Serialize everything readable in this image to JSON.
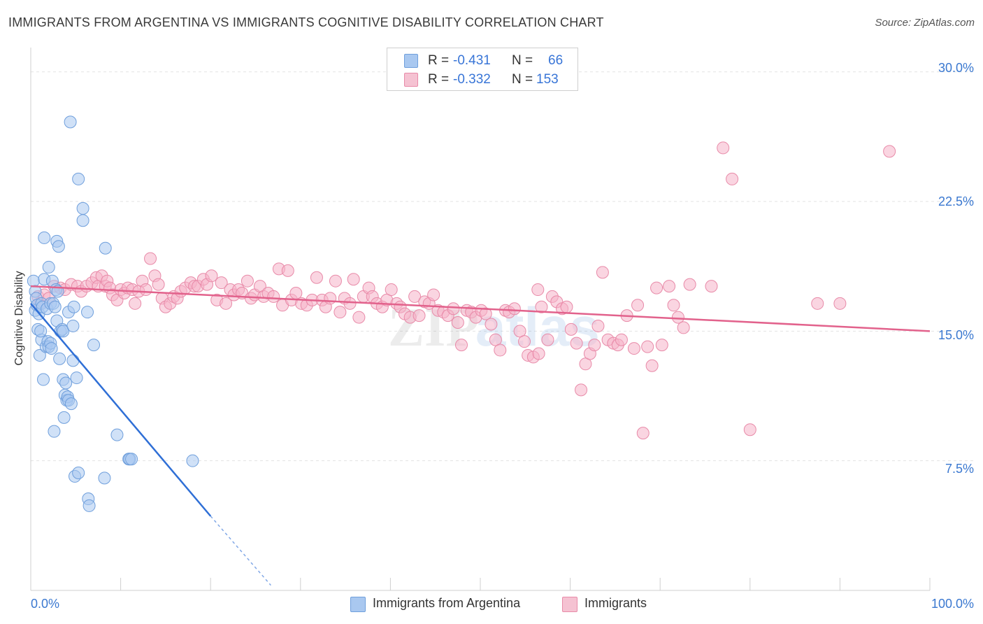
{
  "header": {
    "title": "IMMIGRANTS FROM ARGENTINA VS IMMIGRANTS COGNITIVE DISABILITY CORRELATION CHART",
    "source": "Source: ZipAtlas.com"
  },
  "legend_top": {
    "rows": [
      {
        "r_label": "R =",
        "r_value": "-0.431",
        "n_label": "N =",
        "n_value": "66"
      },
      {
        "r_label": "R =",
        "r_value": "-0.332",
        "n_label": "N =",
        "n_value": "153"
      }
    ]
  },
  "legend_bottom": {
    "items": [
      "Immigrants from Argentina",
      "Immigrants"
    ]
  },
  "colors": {
    "blue_fill": "#a9c8f0",
    "blue_stroke": "#6f9fdc",
    "blue_line": "#2f6fd6",
    "pink_fill": "#f5b3c8",
    "pink_stroke": "#e88aa8",
    "pink_line": "#e2628c",
    "tick_text": "#3a78d0",
    "grid": "#e3e3e3"
  },
  "watermark": "ZIPatlas",
  "chart_data": {
    "type": "scatter",
    "title": "IMMIGRANTS FROM ARGENTINA VS IMMIGRANTS COGNITIVE DISABILITY CORRELATION CHART",
    "xlabel": "",
    "ylabel": "Cognitive Disability",
    "xlim": [
      0,
      100
    ],
    "ylim": [
      0,
      31
    ],
    "x_tick_labels": [
      "0.0%",
      "100.0%"
    ],
    "y_ticks": [
      7.5,
      15.0,
      22.5,
      30.0
    ],
    "y_tick_labels": [
      "7.5%",
      "15.0%",
      "22.5%",
      "30.0%"
    ],
    "grid": true,
    "legend_position": "top-center",
    "series": [
      {
        "name": "Immigrants from Argentina",
        "color": "blue",
        "R": -0.431,
        "N": 66,
        "trend": {
          "x": [
            0,
            20
          ],
          "y": [
            16.6,
            4.3
          ],
          "dashed_to": {
            "x": 26.7,
            "y": 0.3
          }
        },
        "points": [
          [
            0.3,
            17.9
          ],
          [
            0.5,
            17.3
          ],
          [
            0.5,
            16.2
          ],
          [
            0.6,
            16.9
          ],
          [
            0.7,
            16.5
          ],
          [
            0.8,
            15.1
          ],
          [
            0.9,
            16.0
          ],
          [
            1.0,
            13.6
          ],
          [
            1.2,
            16.6
          ],
          [
            1.2,
            14.5
          ],
          [
            1.3,
            16.4
          ],
          [
            1.4,
            12.2
          ],
          [
            1.5,
            18.0
          ],
          [
            1.5,
            20.4
          ],
          [
            1.7,
            14.1
          ],
          [
            1.8,
            16.3
          ],
          [
            1.9,
            14.4
          ],
          [
            2.0,
            18.7
          ],
          [
            2.0,
            14.1
          ],
          [
            2.2,
            14.3
          ],
          [
            2.2,
            16.6
          ],
          [
            2.3,
            14.0
          ],
          [
            2.4,
            17.9
          ],
          [
            2.5,
            16.6
          ],
          [
            2.6,
            9.2
          ],
          [
            2.7,
            16.4
          ],
          [
            2.8,
            17.4
          ],
          [
            2.9,
            20.2
          ],
          [
            2.9,
            15.6
          ],
          [
            3.0,
            17.3
          ],
          [
            3.1,
            19.9
          ],
          [
            3.2,
            13.4
          ],
          [
            3.3,
            15.0
          ],
          [
            3.5,
            15.1
          ],
          [
            3.6,
            12.2
          ],
          [
            3.6,
            15.0
          ],
          [
            3.7,
            10.0
          ],
          [
            3.8,
            11.3
          ],
          [
            3.9,
            12.0
          ],
          [
            4.0,
            11.0
          ],
          [
            4.1,
            11.2
          ],
          [
            4.2,
            11.0
          ],
          [
            4.2,
            16.1
          ],
          [
            4.4,
            27.1
          ],
          [
            4.5,
            10.8
          ],
          [
            4.7,
            15.3
          ],
          [
            4.7,
            13.3
          ],
          [
            4.8,
            16.4
          ],
          [
            4.9,
            6.6
          ],
          [
            5.1,
            12.3
          ],
          [
            5.3,
            6.8
          ],
          [
            5.3,
            23.8
          ],
          [
            5.8,
            22.1
          ],
          [
            5.8,
            21.4
          ],
          [
            6.3,
            16.1
          ],
          [
            6.4,
            5.3
          ],
          [
            6.5,
            4.9
          ],
          [
            7.0,
            14.2
          ],
          [
            8.2,
            6.5
          ],
          [
            8.3,
            19.8
          ],
          [
            9.6,
            9.0
          ],
          [
            10.9,
            7.6
          ],
          [
            11.0,
            7.6
          ],
          [
            11.2,
            7.6
          ],
          [
            18.0,
            7.5
          ],
          [
            1.1,
            15.0
          ]
        ]
      },
      {
        "name": "Immigrants",
        "color": "pink",
        "R": -0.332,
        "N": 153,
        "trend": {
          "x": [
            0,
            100
          ],
          "y": [
            17.6,
            15.0
          ]
        },
        "points": [
          [
            0.8,
            17.0
          ],
          [
            1.0,
            16.6
          ],
          [
            1.5,
            17.1
          ],
          [
            2.0,
            16.9
          ],
          [
            2.6,
            17.6
          ],
          [
            3.3,
            17.5
          ],
          [
            3.8,
            17.4
          ],
          [
            4.5,
            17.7
          ],
          [
            5.2,
            17.6
          ],
          [
            5.6,
            17.3
          ],
          [
            6.2,
            17.6
          ],
          [
            6.8,
            17.8
          ],
          [
            7.3,
            18.1
          ],
          [
            7.5,
            17.6
          ],
          [
            7.9,
            18.2
          ],
          [
            8.3,
            17.6
          ],
          [
            8.5,
            17.9
          ],
          [
            8.8,
            17.5
          ],
          [
            9.1,
            17.1
          ],
          [
            9.6,
            16.8
          ],
          [
            10.0,
            17.4
          ],
          [
            10.4,
            17.2
          ],
          [
            10.8,
            17.5
          ],
          [
            11.3,
            17.4
          ],
          [
            11.6,
            16.6
          ],
          [
            12.0,
            17.3
          ],
          [
            12.4,
            17.9
          ],
          [
            12.8,
            17.4
          ],
          [
            13.3,
            19.2
          ],
          [
            13.8,
            18.2
          ],
          [
            14.2,
            17.7
          ],
          [
            14.6,
            16.9
          ],
          [
            15.0,
            16.4
          ],
          [
            15.5,
            16.6
          ],
          [
            15.9,
            17.0
          ],
          [
            16.3,
            16.9
          ],
          [
            16.7,
            17.3
          ],
          [
            17.2,
            17.5
          ],
          [
            17.8,
            17.8
          ],
          [
            18.2,
            17.6
          ],
          [
            18.6,
            17.6
          ],
          [
            19.2,
            18.0
          ],
          [
            19.6,
            17.7
          ],
          [
            20.1,
            18.2
          ],
          [
            20.7,
            16.8
          ],
          [
            21.2,
            17.8
          ],
          [
            21.7,
            16.6
          ],
          [
            22.2,
            17.4
          ],
          [
            22.6,
            17.1
          ],
          [
            23.1,
            17.4
          ],
          [
            23.5,
            17.2
          ],
          [
            24.1,
            17.9
          ],
          [
            24.5,
            16.9
          ],
          [
            24.9,
            17.1
          ],
          [
            25.5,
            17.6
          ],
          [
            25.9,
            17.0
          ],
          [
            26.4,
            17.2
          ],
          [
            27.0,
            17.0
          ],
          [
            27.6,
            18.6
          ],
          [
            28.0,
            16.5
          ],
          [
            28.6,
            18.5
          ],
          [
            29.0,
            16.8
          ],
          [
            29.5,
            17.2
          ],
          [
            30.1,
            16.6
          ],
          [
            30.7,
            16.5
          ],
          [
            31.3,
            16.8
          ],
          [
            31.8,
            18.1
          ],
          [
            32.4,
            16.8
          ],
          [
            32.8,
            16.4
          ],
          [
            33.3,
            16.9
          ],
          [
            33.9,
            17.9
          ],
          [
            34.4,
            16.1
          ],
          [
            34.9,
            16.9
          ],
          [
            35.5,
            16.6
          ],
          [
            35.9,
            18.0
          ],
          [
            36.5,
            15.8
          ],
          [
            37.0,
            17.0
          ],
          [
            37.6,
            17.5
          ],
          [
            38.0,
            17.0
          ],
          [
            38.5,
            16.6
          ],
          [
            39.1,
            16.4
          ],
          [
            39.6,
            16.8
          ],
          [
            40.1,
            17.4
          ],
          [
            40.7,
            16.6
          ],
          [
            41.1,
            16.4
          ],
          [
            41.6,
            16.0
          ],
          [
            42.2,
            15.8
          ],
          [
            42.7,
            17.0
          ],
          [
            43.2,
            15.9
          ],
          [
            43.8,
            16.7
          ],
          [
            44.3,
            16.6
          ],
          [
            44.8,
            17.1
          ],
          [
            45.3,
            16.2
          ],
          [
            45.9,
            16.1
          ],
          [
            46.4,
            15.9
          ],
          [
            47.0,
            16.3
          ],
          [
            47.5,
            15.5
          ],
          [
            47.9,
            14.2
          ],
          [
            48.5,
            16.2
          ],
          [
            49.0,
            16.1
          ],
          [
            49.5,
            15.8
          ],
          [
            50.1,
            16.2
          ],
          [
            50.6,
            16.0
          ],
          [
            51.2,
            15.4
          ],
          [
            51.7,
            14.5
          ],
          [
            52.2,
            13.9
          ],
          [
            52.8,
            16.2
          ],
          [
            53.2,
            16.1
          ],
          [
            53.8,
            16.3
          ],
          [
            54.4,
            15.0
          ],
          [
            54.9,
            14.4
          ],
          [
            55.3,
            13.6
          ],
          [
            55.9,
            13.5
          ],
          [
            56.4,
            17.4
          ],
          [
            56.8,
            16.4
          ],
          [
            57.5,
            14.5
          ],
          [
            58.0,
            17.0
          ],
          [
            58.5,
            16.7
          ],
          [
            59.1,
            16.3
          ],
          [
            59.6,
            16.4
          ],
          [
            60.1,
            15.1
          ],
          [
            60.7,
            14.3
          ],
          [
            61.2,
            11.6
          ],
          [
            61.7,
            13.1
          ],
          [
            62.2,
            13.7
          ],
          [
            62.7,
            14.2
          ],
          [
            63.1,
            15.3
          ],
          [
            63.6,
            18.4
          ],
          [
            64.2,
            14.5
          ],
          [
            64.8,
            14.3
          ],
          [
            65.3,
            14.2
          ],
          [
            65.7,
            14.5
          ],
          [
            66.3,
            15.9
          ],
          [
            67.1,
            14.0
          ],
          [
            67.5,
            16.5
          ],
          [
            68.1,
            9.1
          ],
          [
            68.6,
            14.1
          ],
          [
            69.1,
            13.0
          ],
          [
            69.6,
            17.5
          ],
          [
            70.2,
            14.2
          ],
          [
            71.0,
            17.6
          ],
          [
            71.5,
            16.5
          ],
          [
            72.0,
            15.8
          ],
          [
            72.6,
            15.2
          ],
          [
            73.3,
            17.7
          ],
          [
            75.7,
            17.6
          ],
          [
            77.0,
            25.6
          ],
          [
            78.0,
            23.8
          ],
          [
            80.0,
            9.3
          ],
          [
            87.5,
            16.6
          ],
          [
            90.0,
            16.6
          ],
          [
            95.5,
            25.4
          ],
          [
            56.5,
            13.7
          ]
        ]
      }
    ]
  }
}
